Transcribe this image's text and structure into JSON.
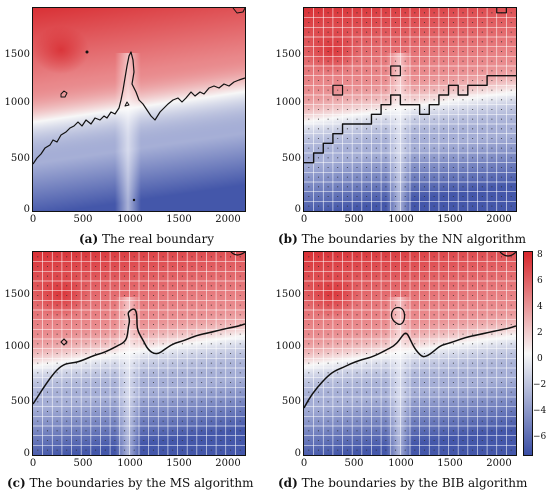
{
  "colors": {
    "high": "#d7262b",
    "mid": "#f7f7f7",
    "low": "#3a4ea5",
    "boundary": "#111111",
    "grid": "#ffffff"
  },
  "axes": {
    "y_ticks": [
      "0",
      "500",
      "1000",
      "1500"
    ],
    "x_ticks": [
      "0",
      "500",
      "1000",
      "1500",
      "2000"
    ]
  },
  "panels": [
    {
      "id": "a",
      "letter": "(a)",
      "caption": "The real boundary"
    },
    {
      "id": "b",
      "letter": "(b)",
      "caption": "The boundaries by the NN algorithm"
    },
    {
      "id": "c",
      "letter": "(c)",
      "caption": "The boundaries by the MS algorithm"
    },
    {
      "id": "d",
      "letter": "(d)",
      "caption": "The boundaries by the BIB algorithm"
    }
  ],
  "colorbar": {
    "ticks": [
      "8",
      "6",
      "4",
      "2",
      "0",
      "−2",
      "−4",
      "−6"
    ]
  }
}
